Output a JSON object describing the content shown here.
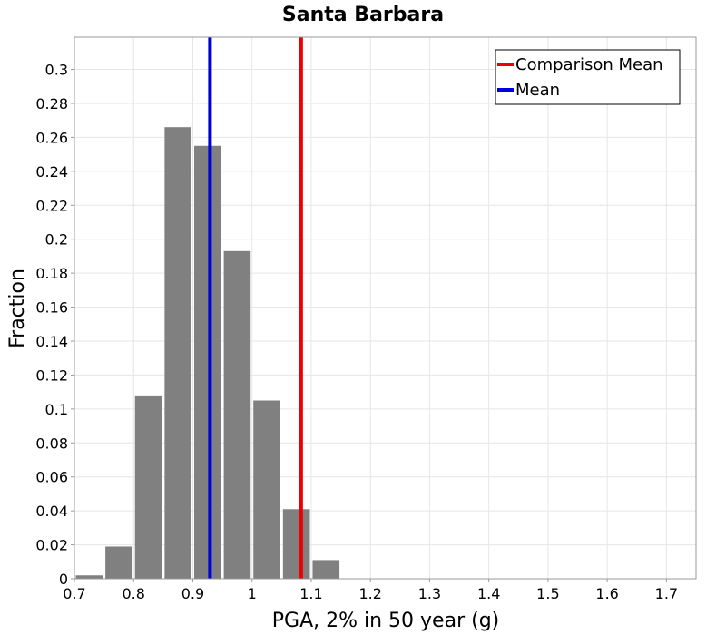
{
  "chart_data": {
    "type": "bar",
    "title": "Santa Barbara",
    "xlabel": "PGA, 2% in 50 year (g)",
    "ylabel": "Fraction",
    "xlim": [
      0.7,
      1.75
    ],
    "ylim": [
      0,
      0.319
    ],
    "x_ticks": [
      0.7,
      0.8,
      0.9,
      1,
      1.1,
      1.2,
      1.3,
      1.4,
      1.5,
      1.6,
      1.7
    ],
    "x_tick_labels": [
      "0.7",
      "0.8",
      "0.9",
      "1",
      "1.1",
      "1.2",
      "1.3",
      "1.4",
      "1.5",
      "1.6",
      "1.7"
    ],
    "y_ticks": [
      0,
      0.02,
      0.04,
      0.06,
      0.08,
      0.1,
      0.12,
      0.14,
      0.16,
      0.18,
      0.2,
      0.22,
      0.24,
      0.26,
      0.28,
      0.3
    ],
    "y_tick_labels": [
      "0",
      "0.02",
      "0.04",
      "0.06",
      "0.08",
      "0.1",
      "0.12",
      "0.14",
      "0.16",
      "0.18",
      "0.2",
      "0.22",
      "0.24",
      "0.26",
      "0.28",
      "0.3"
    ],
    "grid": true,
    "bar_color": "#808080",
    "bars": [
      {
        "x": 0.725,
        "value": 0.002
      },
      {
        "x": 0.775,
        "value": 0.019
      },
      {
        "x": 0.825,
        "value": 0.108
      },
      {
        "x": 0.875,
        "value": 0.266
      },
      {
        "x": 0.925,
        "value": 0.255
      },
      {
        "x": 0.975,
        "value": 0.193
      },
      {
        "x": 1.025,
        "value": 0.105
      },
      {
        "x": 1.075,
        "value": 0.041
      },
      {
        "x": 1.125,
        "value": 0.011
      }
    ],
    "bin_width": 0.05,
    "vlines": [
      {
        "name": "Comparison Mean",
        "x": 1.083,
        "color": "#ee0000"
      },
      {
        "name": "Mean",
        "x": 0.929,
        "color": "#0000dd"
      }
    ],
    "legend": {
      "placement": "top-right",
      "entries": [
        {
          "label": "Comparison Mean",
          "color": "#ee0000"
        },
        {
          "label": "Mean",
          "color": "#0000dd"
        }
      ]
    }
  }
}
